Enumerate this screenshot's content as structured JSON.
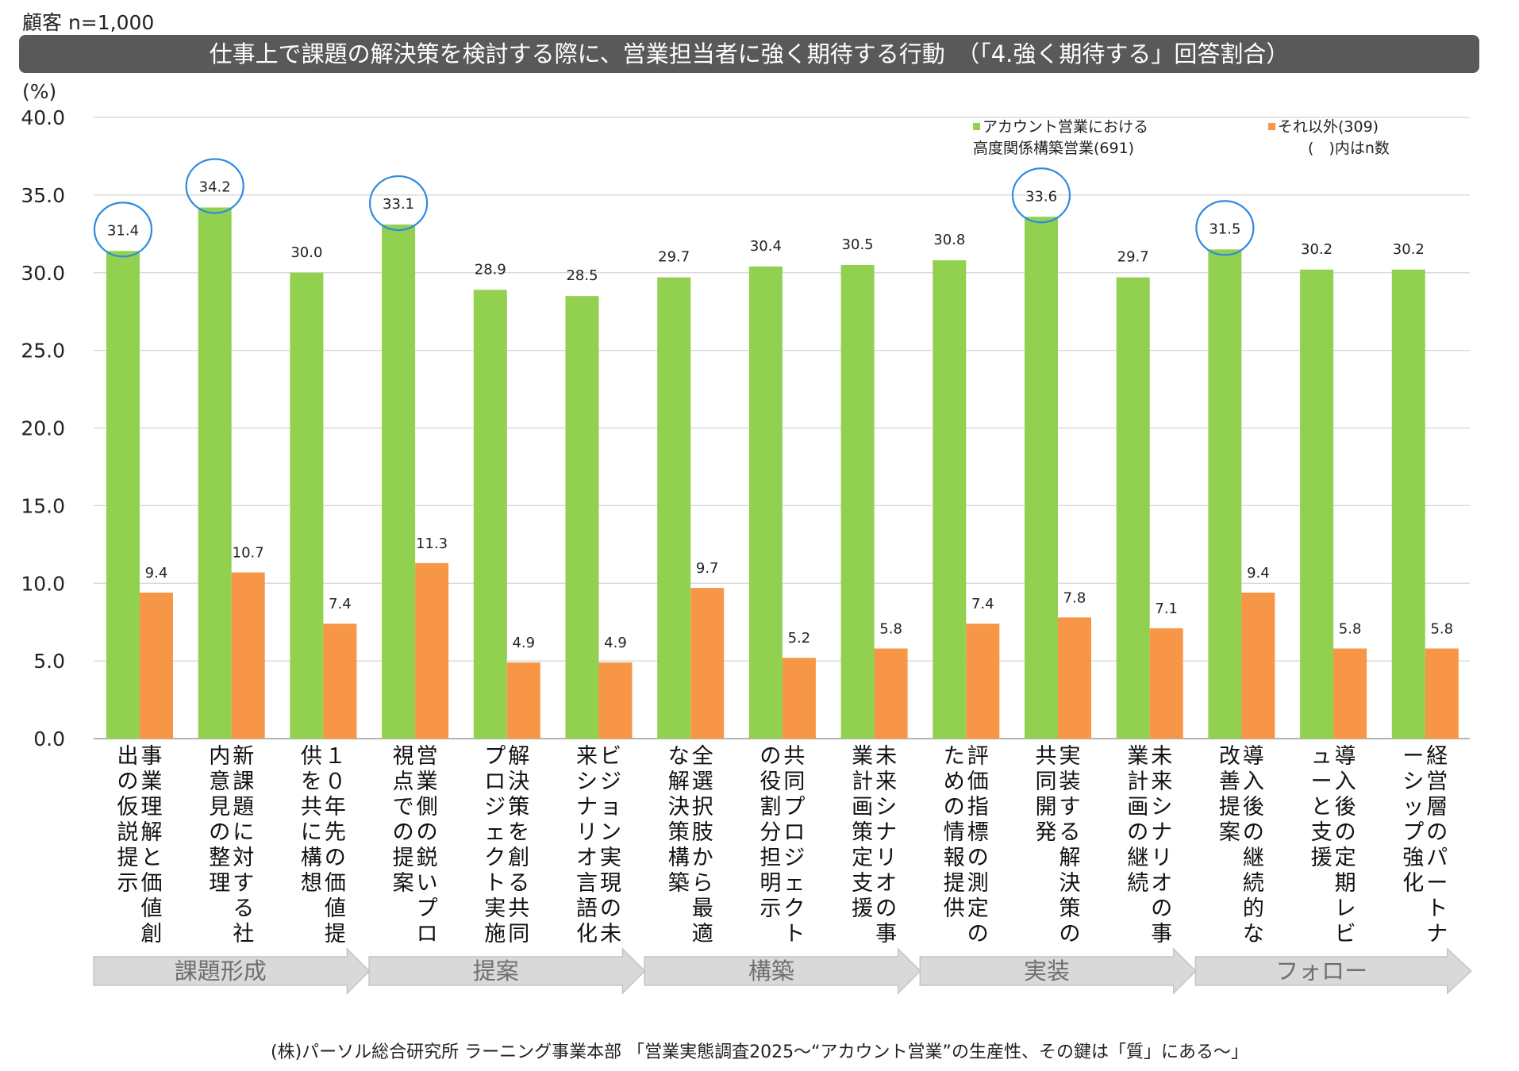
{
  "header": {
    "sample_label": "顧客 n=1,000",
    "title": "仕事上で課題の解決策を検討する際に、営業担当者に強く期待する行動　（「4.強く期待する」回答割合）"
  },
  "footer": {
    "source": "(株)パーソル総合研究所 ラーニング事業本部 「営業実態調査2025〜“アカウント営業”の生産性、その鍵は「質」にある〜」"
  },
  "legend": {
    "note": "(　)内はn数"
  },
  "colors": {
    "series1": "#92D050",
    "series2": "#F79646",
    "highlight_ring": "#2E8BE0",
    "title_bar": "#595959",
    "stage_arrow": "#d9d9d9"
  },
  "stages": [
    {
      "label": "課題形成",
      "from": 0,
      "to": 2
    },
    {
      "label": "提案",
      "from": 3,
      "to": 5
    },
    {
      "label": "構築",
      "from": 6,
      "to": 8
    },
    {
      "label": "実装",
      "from": 9,
      "to": 11
    },
    {
      "label": "フォロー",
      "from": 12,
      "to": 14
    }
  ],
  "chart_data": {
    "type": "bar",
    "ylabel": "(%)",
    "ylim": [
      0,
      40
    ],
    "yticks": [
      "0.0",
      "5.0",
      "10.0",
      "15.0",
      "20.0",
      "25.0",
      "30.0",
      "35.0",
      "40.0"
    ],
    "grid": true,
    "legend_position": "top-right",
    "categories": [
      "事業理解と価値創出の仮説提示",
      "新課題に対する社内意見の整理",
      "10年先の価値提供を共に構想",
      "営業側の鋭いプロ視点での提案",
      "解決策を創る共同プロジェクト実施",
      "ビジョン実現の未来シナリオ言語化",
      "全選択肢から最適な解決策構築",
      "共同プロジェクトの役割分担明示",
      "未来シナリオの事業計画策定支援",
      "評価指標の測定のための情報提供",
      "実装する解決策の共同開発",
      "未来シナリオの事業計画の継続",
      "導入後の継続的な改善提案",
      "導入後の定期レビューと支援",
      "経営層のパートナーシップ強化"
    ],
    "series": [
      {
        "name": "アカウント営業における高度関係構築営業(691)",
        "name_lines": [
          "アカウント営業における",
          "高度関係構築営業(691)"
        ],
        "values": [
          31.4,
          34.2,
          30.0,
          33.1,
          28.9,
          28.5,
          29.7,
          30.4,
          30.5,
          30.8,
          33.6,
          29.7,
          31.5,
          30.2,
          30.2
        ],
        "labels": [
          "31.4",
          "34.2",
          "30.0",
          "33.1",
          "28.9",
          "28.5",
          "29.7",
          "30.4",
          "30.5",
          "30.8",
          "33.6",
          "29.7",
          "31.5",
          "30.2",
          "30.2"
        ],
        "highlighted": [
          0,
          1,
          3,
          10,
          12
        ]
      },
      {
        "name": "それ以外(309)",
        "name_lines": [
          "それ以外(309)"
        ],
        "values": [
          9.4,
          10.7,
          7.4,
          11.3,
          4.9,
          4.9,
          9.7,
          5.2,
          5.8,
          7.4,
          7.8,
          7.1,
          9.4,
          5.8,
          5.8
        ],
        "labels": [
          "9.4",
          "10.7",
          "7.4",
          "11.3",
          "4.9",
          "4.9",
          "9.7",
          "5.2",
          "5.8",
          "7.4",
          "7.8",
          "7.1",
          "9.4",
          "5.8",
          "5.8"
        ]
      }
    ]
  }
}
